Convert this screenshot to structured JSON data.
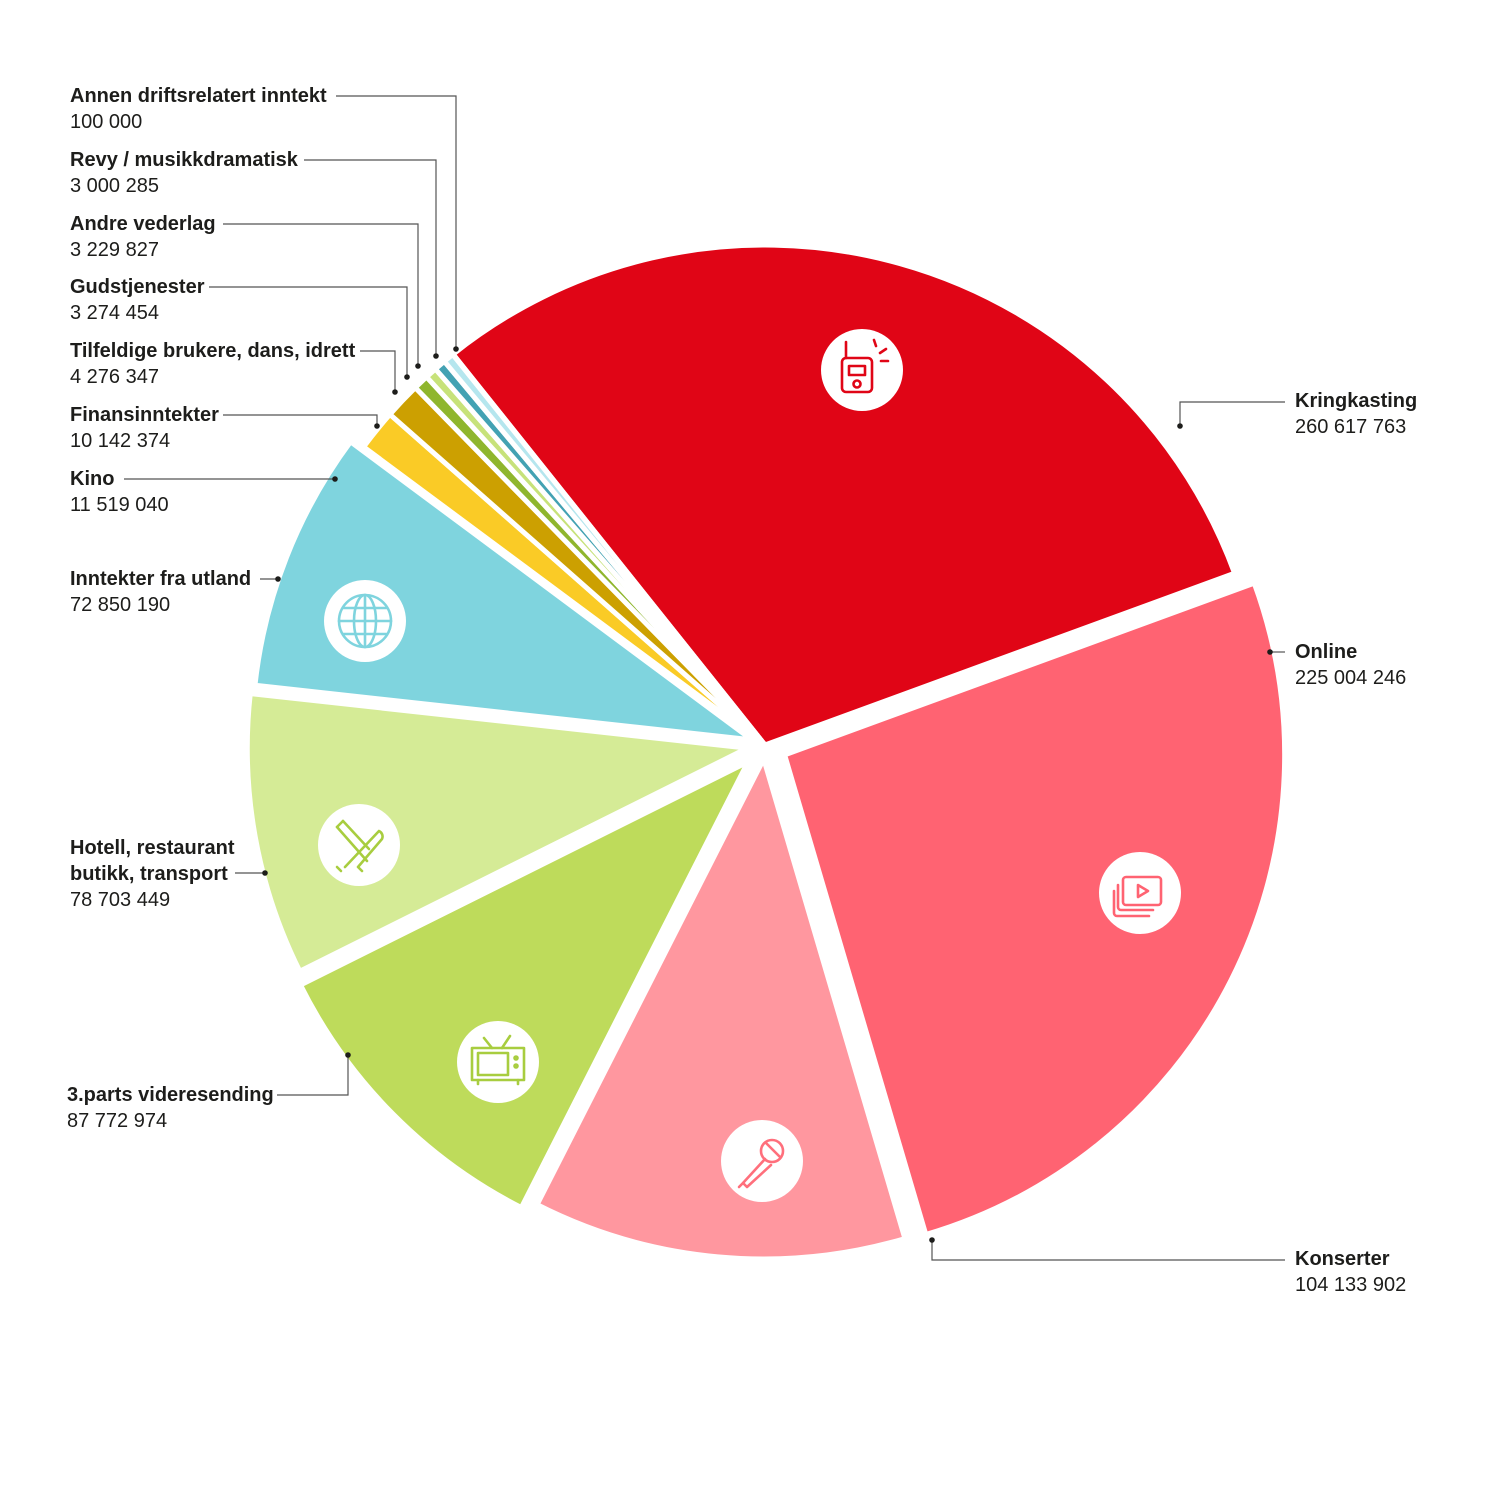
{
  "chart_data": {
    "type": "pie",
    "title": "",
    "slices": [
      {
        "name": "Kringkasting",
        "value": "260 617 763",
        "amount": 260617763,
        "color": "#e00516",
        "icon": "radio-icon"
      },
      {
        "name": "Online",
        "value": "225 004 246",
        "amount": 225004246,
        "color": "#ff6372",
        "icon": "video-play-icon"
      },
      {
        "name": "Konserter",
        "value": "104 133 902",
        "amount": 104133902,
        "color": "#ff979f",
        "icon": "microphone-icon"
      },
      {
        "name": "3.parts videresending",
        "value": "87 772 974",
        "amount": 87772974,
        "color": "#bedb5b",
        "icon": "tv-icon"
      },
      {
        "name": "Hotell, restaurant\nbutikk, transport",
        "value": "78 703 449",
        "amount": 78703449,
        "color": "#d5eb96",
        "icon": "cutlery-icon"
      },
      {
        "name": "Inntekter fra utland",
        "value": "72 850 190",
        "amount": 72850190,
        "color": "#7fd4de",
        "icon": "globe-icon"
      },
      {
        "name": "Kino",
        "value": "11 519 040",
        "amount": 11519040,
        "color": "#facb26",
        "icon": ""
      },
      {
        "name": "Finansinntekter",
        "value": "10 142 374",
        "amount": 10142374,
        "color": "#cca001",
        "icon": ""
      },
      {
        "name": "Tilfeldige brukere, dans, idrett",
        "value": "4 276 347",
        "amount": 4276347,
        "color": "#8fb62d",
        "icon": ""
      },
      {
        "name": "Gudstjenester",
        "value": "3 274 454",
        "amount": 3274454,
        "color": "#c7e27a",
        "icon": ""
      },
      {
        "name": "Andre vederlag",
        "value": "3 229 827",
        "amount": 3229827,
        "color": "#43a2b3",
        "icon": ""
      },
      {
        "name": "Revy / musikkdramatisk",
        "value": "3 000 285",
        "amount": 3000285,
        "color": "#b5e6ee",
        "icon": ""
      },
      {
        "name": "Annen driftsrelatert inntekt",
        "value": "100 000",
        "amount": 100000,
        "color": "#8ed8e4",
        "icon": ""
      }
    ],
    "legend": "none"
  }
}
